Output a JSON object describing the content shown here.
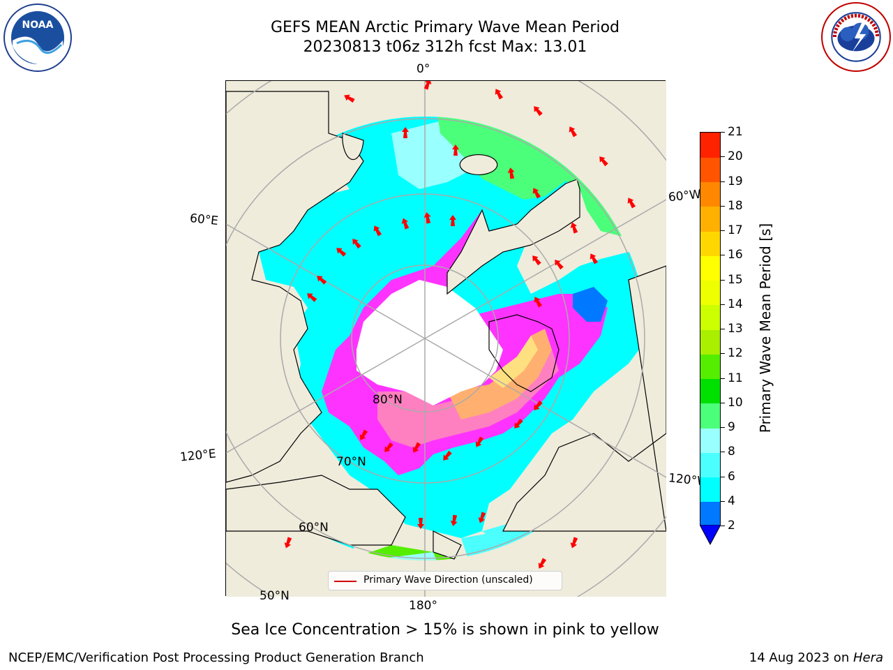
{
  "header": {
    "title_line1": "GEFS MEAN Arctic Primary Wave Mean Period",
    "title_line2": "20230813 t06z 312h fcst   Max: 13.01"
  },
  "logos": {
    "left": "noaa-logo",
    "right": "nws-logo",
    "left_text": "NOAA",
    "right_text": "NATIONAL WEATHER SERVICE"
  },
  "map": {
    "projection": "north polar stereographic",
    "lon_labels": {
      "top": "0°",
      "right_top": "60°W",
      "left_top": "60°E",
      "left_bottom": "120°E",
      "right_bottom": "120°W",
      "bottom": "180°"
    },
    "lat_labels": {
      "lat80": "80°N",
      "lat70": "70°N",
      "lat60": "60°N",
      "lat50": "50°N"
    },
    "land_color": "#efecdc",
    "ocean_colors": {
      "cyan": "#00ffff",
      "light_cyan": "#99ffff",
      "green": "#4cff7a",
      "bright_green": "#00e000",
      "blue": "#0078ff"
    },
    "ice_colors": [
      "#ff33ff",
      "#ff80c0",
      "#ffb070",
      "#ffe080"
    ],
    "arrow_color": "#ff0000",
    "legend_label": "Primary Wave Direction (unscaled)"
  },
  "colorbar": {
    "title": "Primary Wave Mean Period [s]",
    "tick_labels": [
      "2",
      "4",
      "6",
      "8",
      "9",
      "10",
      "11",
      "12",
      "13",
      "14",
      "15",
      "16",
      "17",
      "18",
      "19",
      "20",
      "21"
    ],
    "colors": [
      "#0078ff",
      "#00ffff",
      "#4cffff",
      "#99ffff",
      "#4cff7a",
      "#00e000",
      "#55ee00",
      "#aaee00",
      "#ccff00",
      "#eeff00",
      "#ffff00",
      "#ffd700",
      "#ffb000",
      "#ff8800",
      "#ff5500",
      "#ff2200"
    ],
    "extend_color": "#0000ff"
  },
  "footer": {
    "note": "Sea Ice Concentration > 15% is shown in pink to yellow",
    "credit_left": "NCEP/EMC/Verification Post Processing Product Generation Branch",
    "credit_right_prefix": "14 Aug 2023 on ",
    "credit_right_host": "Hera"
  }
}
